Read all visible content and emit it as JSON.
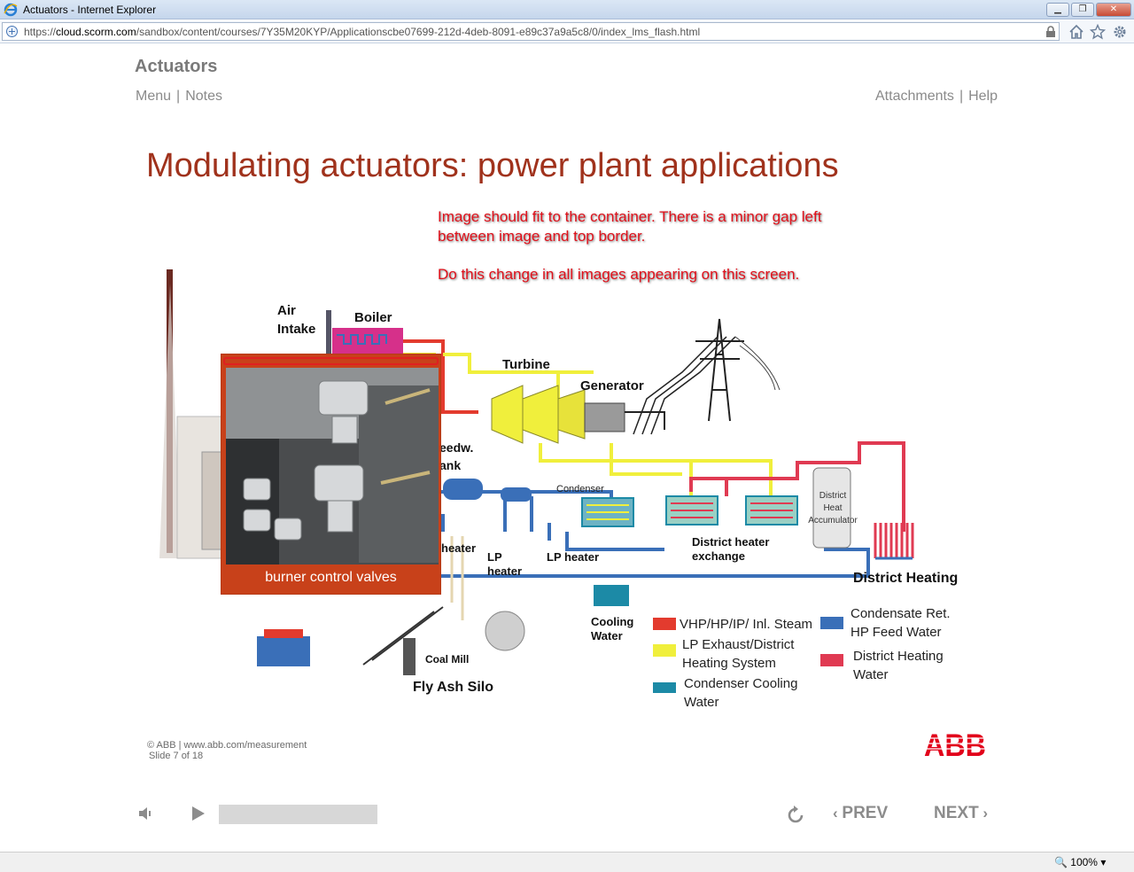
{
  "browser": {
    "window_title": "Actuators - Internet Explorer",
    "url_prefix": "https://",
    "url_host": "cloud.scorm.com",
    "url_path": "/sandbox/content/courses/7Y35M20KYP/Applicationscbe07699-212d-4deb-8091-e89c37a9a5c8/0/index_lms_flash.html",
    "zoom": "100%"
  },
  "course": {
    "title": "Actuators",
    "nav_left": [
      "Menu",
      "Notes"
    ],
    "nav_right": [
      "Attachments",
      "Help"
    ]
  },
  "slide": {
    "title": "Modulating actuators: power plant applications",
    "review_note": [
      "Image should fit to the container. There is a minor gap left between image and top border.",
      "Do this change in all images appearing on this screen."
    ],
    "callout_caption": "burner control valves",
    "diagram_labels": {
      "air_intake": "Air Intake",
      "boiler": "Boiler",
      "turbine": "Turbine",
      "generator": "Generator",
      "feedw_tank": "eedw. ank",
      "heater": "heater",
      "lp_heater_1": "LP heater",
      "lp_heater_2": "LP heater",
      "condenser": "Condenser",
      "district_heater_exchange": "District heater exchange",
      "district_heat_accumulator": "District Heat Accumulator",
      "district_heating": "District Heating",
      "cooling_water": "Cooling Water",
      "coal_mill": "Coal Mill",
      "fly_ash_silo": "Fly Ash Silo"
    },
    "legend": [
      {
        "label": "VHP/HP/IP/ Inl. Steam",
        "color": "#e33b2e"
      },
      {
        "label": "LP Exhaust/District Heating System",
        "color": "#f0ef3c"
      },
      {
        "label": "Condenser Cooling Water",
        "color": "#1c8aa6"
      },
      {
        "label": "Condensate Ret. HP Feed Water",
        "color": "#3a6fb8"
      },
      {
        "label": "District Heating Water",
        "color": "#e03a52"
      }
    ],
    "footer_copyright": "© ABB | www.abb.com/measurement",
    "footer_slide": "Slide 7 of 18",
    "logo_text": "ABB"
  },
  "player": {
    "prev_label": "PREV",
    "next_label": "NEXT",
    "progress": 0.0
  },
  "colors": {
    "title_red": "#a0321c",
    "note_red": "#e0101a",
    "callout_orange": "#c8411a",
    "abb_red": "#e2001a"
  }
}
